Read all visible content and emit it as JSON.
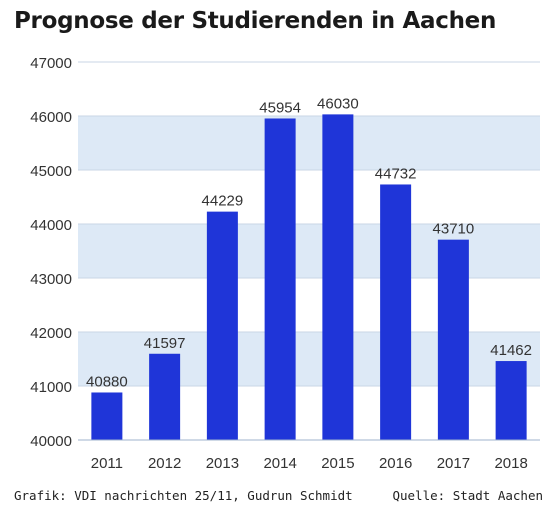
{
  "title": "Prognose der Studierenden in Aachen",
  "footer": {
    "credit": "Grafik: VDI nachrichten 25/11, Gudrun Schmidt",
    "source": "Quelle: Stadt Aachen"
  },
  "chart_data": {
    "type": "bar",
    "categories": [
      "2011",
      "2012",
      "2013",
      "2014",
      "2015",
      "2016",
      "2017",
      "2018"
    ],
    "values": [
      40880,
      41597,
      44229,
      45954,
      46030,
      44732,
      43710,
      41462
    ],
    "data_labels": [
      "40880",
      "41597",
      "44229",
      "45954",
      "46030",
      "44732",
      "43710",
      "41462"
    ],
    "ylim": [
      40000,
      47000
    ],
    "yticks": [
      40000,
      41000,
      42000,
      43000,
      44000,
      45000,
      46000,
      47000
    ],
    "ytick_labels": [
      "40000",
      "41000",
      "42000",
      "43000",
      "44000",
      "45000",
      "46000",
      "47000"
    ],
    "bar_color": "#1f35d8",
    "band_color": "#dde9f6",
    "grid": true,
    "legend": "none"
  }
}
